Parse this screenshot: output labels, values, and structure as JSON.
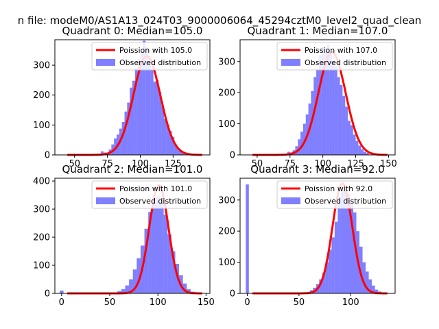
{
  "figure": {
    "suptitle": "n file: modeM0/AS1A13_024T03_9000006064_45294cztM0_level2_quad_clean"
  },
  "chart_data": [
    {
      "type": "bar",
      "title": "Quadrant 0: Median=105.0",
      "xlim": [
        35,
        153
      ],
      "ylim": [
        0,
        385
      ],
      "xticks": [
        50,
        75,
        100,
        125
      ],
      "yticks": [
        0,
        100,
        200,
        300
      ],
      "legend": {
        "placement": "top-right",
        "line_label": "Poission with 105.0",
        "hist_label": "Observed distribution"
      },
      "mean": 105.0,
      "poisson_peak": 330,
      "histogrammes": [
        [
          77,
          18
        ],
        [
          79,
          35
        ],
        [
          81,
          55
        ],
        [
          83,
          68
        ],
        [
          85,
          88
        ],
        [
          87,
          110
        ],
        [
          89,
          145
        ],
        [
          91,
          175
        ],
        [
          93,
          225
        ],
        [
          95,
          248
        ],
        [
          97,
          290
        ],
        [
          99,
          320
        ],
        [
          101,
          350
        ],
        [
          103,
          382
        ],
        [
          105,
          360
        ],
        [
          107,
          310
        ],
        [
          109,
          290
        ],
        [
          111,
          245
        ],
        [
          113,
          250
        ],
        [
          115,
          210
        ],
        [
          117,
          165
        ],
        [
          119,
          120
        ],
        [
          121,
          100
        ],
        [
          123,
          80
        ],
        [
          125,
          60
        ],
        [
          127,
          35
        ],
        [
          129,
          20
        ],
        [
          131,
          12
        ],
        [
          133,
          6
        ],
        [
          71,
          12
        ],
        [
          73,
          8
        ],
        [
          75,
          6
        ]
      ]
    },
    {
      "type": "bar",
      "title": "Quadrant 1: Median=107.0",
      "xlim": [
        37,
        155
      ],
      "ylim": [
        0,
        370
      ],
      "xticks": [
        50,
        75,
        100,
        125,
        150
      ],
      "yticks": [
        0,
        100,
        200,
        300
      ],
      "legend": {
        "placement": "top-right",
        "line_label": "Poission with 107.0",
        "hist_label": "Observed distribution"
      },
      "mean": 107.0,
      "poisson_peak": 330,
      "histogrammes": [
        [
          78,
          15
        ],
        [
          80,
          28
        ],
        [
          82,
          50
        ],
        [
          84,
          75
        ],
        [
          86,
          100
        ],
        [
          88,
          130
        ],
        [
          90,
          165
        ],
        [
          92,
          205
        ],
        [
          94,
          250
        ],
        [
          96,
          275
        ],
        [
          98,
          320
        ],
        [
          100,
          345
        ],
        [
          102,
          340
        ],
        [
          104,
          355
        ],
        [
          106,
          330
        ],
        [
          108,
          300
        ],
        [
          110,
          285
        ],
        [
          112,
          250
        ],
        [
          114,
          225
        ],
        [
          116,
          190
        ],
        [
          118,
          155
        ],
        [
          120,
          110
        ],
        [
          122,
          95
        ],
        [
          124,
          65
        ],
        [
          126,
          45
        ],
        [
          128,
          30
        ],
        [
          130,
          18
        ],
        [
          132,
          10
        ],
        [
          134,
          6
        ],
        [
          74,
          10
        ],
        [
          76,
          8
        ]
      ]
    },
    {
      "type": "bar",
      "title": "Quadrant 2: Median=101.0",
      "xlim": [
        -7,
        154
      ],
      "ylim": [
        0,
        410
      ],
      "xticks": [
        0,
        50,
        100,
        150
      ],
      "yticks": [
        0,
        100,
        200,
        300,
        400
      ],
      "legend": {
        "placement": "top-right",
        "line_label": "Poission with 101.0",
        "hist_label": "Observed distribution"
      },
      "mean": 101.0,
      "poisson_peak": 385,
      "histogrammes": [
        [
          0,
          10
        ],
        [
          60,
          8
        ],
        [
          64,
          15
        ],
        [
          68,
          28
        ],
        [
          72,
          50
        ],
        [
          76,
          85
        ],
        [
          80,
          125
        ],
        [
          84,
          170
        ],
        [
          88,
          230
        ],
        [
          92,
          290
        ],
        [
          96,
          330
        ],
        [
          100,
          345
        ],
        [
          104,
          325
        ],
        [
          108,
          280
        ],
        [
          112,
          210
        ],
        [
          116,
          150
        ],
        [
          120,
          105
        ],
        [
          124,
          65
        ],
        [
          128,
          35
        ],
        [
          132,
          15
        ],
        [
          136,
          6
        ]
      ]
    },
    {
      "type": "bar",
      "title": "Quadrant 3: Median=92.0",
      "xlim": [
        -7,
        143
      ],
      "ylim": [
        0,
        370
      ],
      "xticks": [
        0,
        50,
        100
      ],
      "yticks": [
        0,
        100,
        200,
        300
      ],
      "legend": {
        "placement": "top-right",
        "line_label": "Poission with 92.0",
        "hist_label": "Observed distribution"
      },
      "mean": 92.0,
      "poisson_peak": 353,
      "histogrammes": [
        [
          0,
          350
        ],
        [
          62,
          10
        ],
        [
          65,
          18
        ],
        [
          68,
          30
        ],
        [
          71,
          45
        ],
        [
          74,
          65
        ],
        [
          77,
          100
        ],
        [
          80,
          140
        ],
        [
          83,
          180
        ],
        [
          86,
          230
        ],
        [
          89,
          310
        ],
        [
          92,
          330
        ],
        [
          95,
          340
        ],
        [
          98,
          320
        ],
        [
          101,
          300
        ],
        [
          104,
          260
        ],
        [
          107,
          200
        ],
        [
          110,
          150
        ],
        [
          113,
          100
        ],
        [
          116,
          70
        ],
        [
          119,
          45
        ],
        [
          122,
          25
        ],
        [
          125,
          12
        ],
        [
          128,
          6
        ]
      ]
    }
  ]
}
